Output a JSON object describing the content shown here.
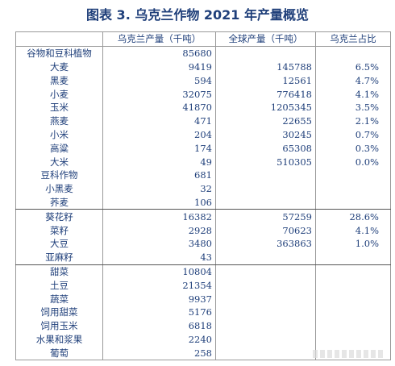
{
  "title": "图表 3.  乌克兰作物 2021 年产量概览",
  "headers": [
    "",
    "乌克兰产量（千吨）",
    "全球产量（千吨）",
    "乌克兰占比"
  ],
  "groups": [
    [
      {
        "name": "谷物和豆科植物",
        "ukraine": "85680",
        "world": "",
        "share": ""
      },
      {
        "name": "大麦",
        "ukraine": "9419",
        "world": "145788",
        "share": "6.5%"
      },
      {
        "name": "黑麦",
        "ukraine": "594",
        "world": "12561",
        "share": "4.7%"
      },
      {
        "name": "小麦",
        "ukraine": "32075",
        "world": "776418",
        "share": "4.1%"
      },
      {
        "name": "玉米",
        "ukraine": "41870",
        "world": "1205345",
        "share": "3.5%"
      },
      {
        "name": "燕麦",
        "ukraine": "471",
        "world": "22655",
        "share": "2.1%"
      },
      {
        "name": "小米",
        "ukraine": "204",
        "world": "30245",
        "share": "0.7%"
      },
      {
        "name": "高粱",
        "ukraine": "174",
        "world": "65308",
        "share": "0.3%"
      },
      {
        "name": "大米",
        "ukraine": "49",
        "world": "510305",
        "share": "0.0%"
      },
      {
        "name": "豆科作物",
        "ukraine": "681",
        "world": "",
        "share": ""
      },
      {
        "name": "小黑麦",
        "ukraine": "32",
        "world": "",
        "share": ""
      },
      {
        "name": "荞麦",
        "ukraine": "106",
        "world": "",
        "share": ""
      }
    ],
    [
      {
        "name": "葵花籽",
        "ukraine": "16382",
        "world": "57259",
        "share": "28.6%"
      },
      {
        "name": "菜籽",
        "ukraine": "2928",
        "world": "70623",
        "share": "4.1%"
      },
      {
        "name": "大豆",
        "ukraine": "3480",
        "world": "363863",
        "share": "1.0%"
      },
      {
        "name": "亚麻籽",
        "ukraine": "43",
        "world": "",
        "share": ""
      }
    ],
    [
      {
        "name": "甜菜",
        "ukraine": "10804",
        "world": "",
        "share": ""
      },
      {
        "name": "土豆",
        "ukraine": "21354",
        "world": "",
        "share": ""
      },
      {
        "name": "蔬菜",
        "ukraine": "9937",
        "world": "",
        "share": ""
      },
      {
        "name": "饲用甜菜",
        "ukraine": "5176",
        "world": "",
        "share": ""
      },
      {
        "name": "饲用玉米",
        "ukraine": "6818",
        "world": "",
        "share": ""
      },
      {
        "name": "水果和浆果",
        "ukraine": "2240",
        "world": "",
        "share": ""
      },
      {
        "name": "葡萄",
        "ukraine": "258",
        "world": "",
        "share": ""
      }
    ]
  ]
}
